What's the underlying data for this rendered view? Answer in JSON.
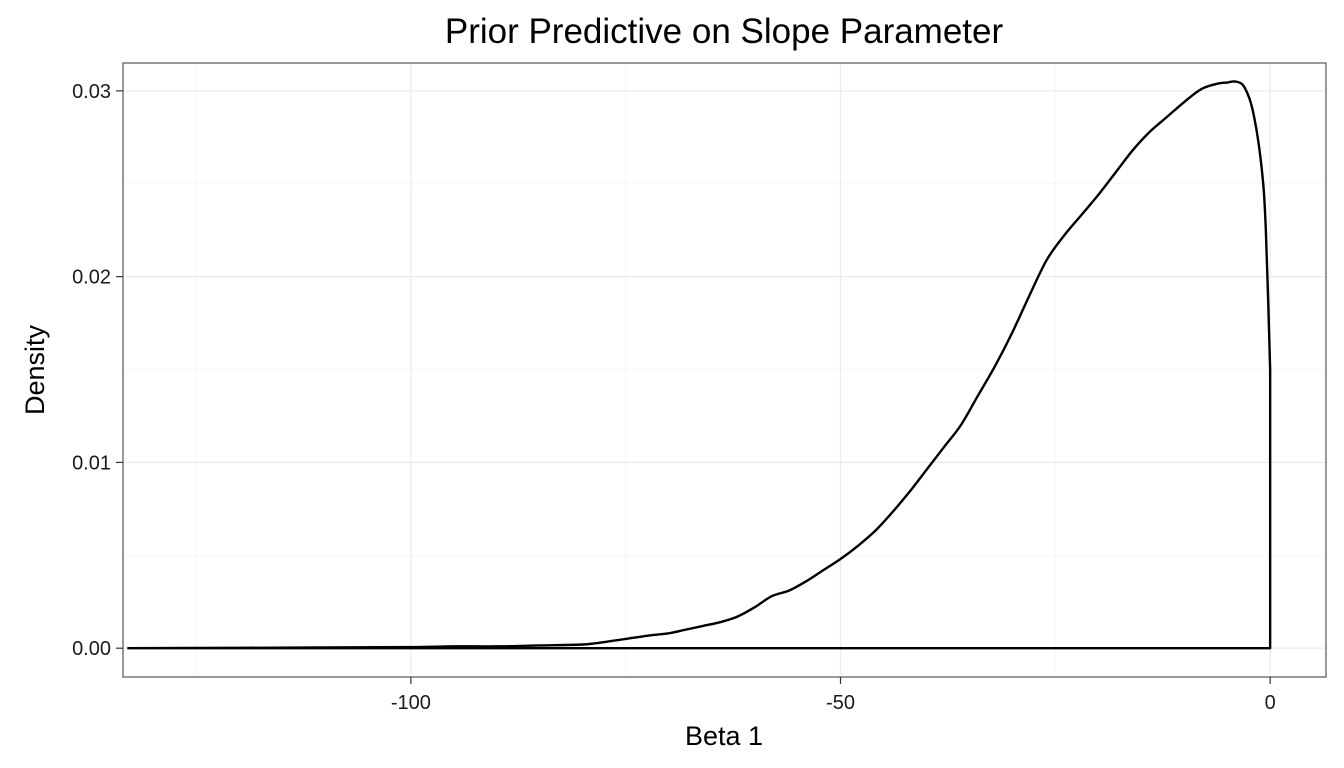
{
  "chart_data": {
    "type": "area",
    "title": "Prior Predictive on Slope Parameter",
    "xlabel": "Beta 1",
    "ylabel": "Density",
    "xlim": [
      -133.5,
      6.5
    ],
    "ylim": [
      -0.00155,
      0.0315
    ],
    "x_ticks": [
      -100,
      -50,
      0
    ],
    "x_tick_labels": [
      "-100",
      "-50",
      "0"
    ],
    "y_ticks": [
      0,
      0.01,
      0.02,
      0.03
    ],
    "y_tick_labels": [
      "0.00",
      "0.01",
      "0.02",
      "0.03"
    ],
    "x_minor": [
      -125,
      -75,
      -25
    ],
    "y_minor": [
      0.005,
      0.015,
      0.025
    ],
    "grid": true,
    "legend": "none",
    "series": [
      {
        "x": [
          -133,
          -120,
          -110,
          -100,
          -95,
          -90,
          -85,
          -80,
          -78,
          -75,
          -72,
          -70,
          -68,
          -66,
          -64,
          -62,
          -60,
          -58,
          -56,
          -54,
          -52,
          -50,
          -48,
          -46,
          -44,
          -42,
          -40,
          -38,
          -36,
          -34,
          -32,
          -30,
          -28,
          -26,
          -24,
          -22,
          -20,
          -18,
          -16,
          -14,
          -12,
          -10,
          -8,
          -6,
          -5,
          -4,
          -3,
          -2,
          -1,
          -0.5,
          0,
          0
        ],
        "y": [
          0,
          2e-05,
          4e-05,
          6e-05,
          0.0001,
          0.0001,
          0.00015,
          0.0002,
          0.0003,
          0.0005,
          0.0007,
          0.0008,
          0.001,
          0.0012,
          0.0014,
          0.0017,
          0.0022,
          0.0028,
          0.0031,
          0.0036,
          0.0042,
          0.0048,
          0.0055,
          0.0063,
          0.0073,
          0.0084,
          0.0096,
          0.0108,
          0.012,
          0.0136,
          0.0152,
          0.017,
          0.019,
          0.0209,
          0.0222,
          0.0233,
          0.0244,
          0.0256,
          0.0268,
          0.0278,
          0.0286,
          0.0294,
          0.0301,
          0.0304,
          0.03045,
          0.0305,
          0.0302,
          0.0289,
          0.0259,
          0.0225,
          0.015,
          0
        ]
      }
    ]
  }
}
